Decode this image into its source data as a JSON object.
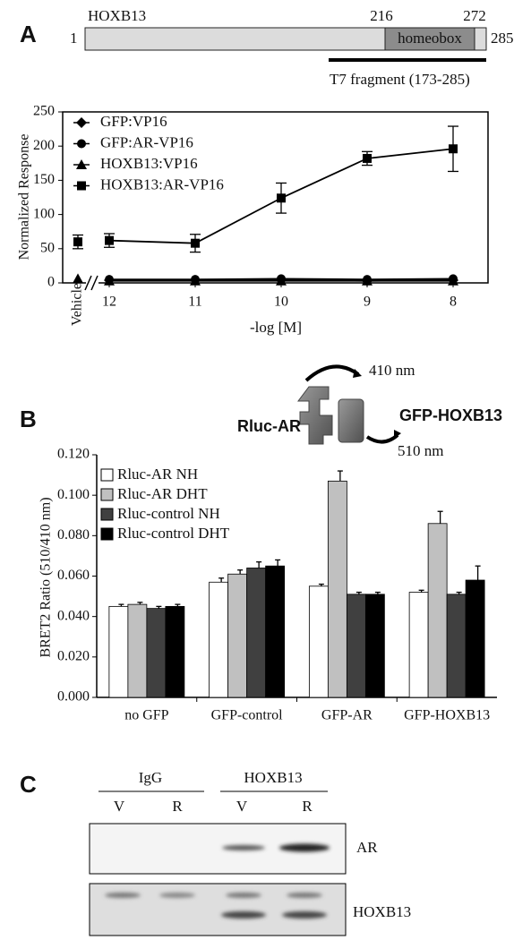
{
  "panels": {
    "a": "A",
    "b": "B",
    "c": "C"
  },
  "protein_map": {
    "name": "HOXB13",
    "start": "1",
    "end": "285",
    "domain_start": "216",
    "domain_end": "272",
    "domain": "homeobox",
    "fragment": "T7 fragment (173-285)"
  },
  "chart_data": [
    {
      "type": "line",
      "ylabel": "Normalized Response",
      "xlabel": "-log [M]",
      "categories": [
        "Vehicle",
        "12",
        "11",
        "10",
        "9",
        "8"
      ],
      "ylim": [
        0,
        250
      ],
      "yticks": [
        0,
        50,
        100,
        150,
        200,
        250
      ],
      "legend": "upper left",
      "series": [
        {
          "name": "GFP:VP16",
          "color": "#000000",
          "marker": "diamond",
          "values": [
            null,
            4,
            4,
            4,
            3,
            4
          ]
        },
        {
          "name": "GFP:AR-VP16",
          "color": "#000000",
          "marker": "circle",
          "values": [
            null,
            5,
            5,
            6,
            5,
            6
          ]
        },
        {
          "name": "HOXB13:VP16",
          "color": "#000000",
          "marker": "triangle",
          "values": [
            6,
            3,
            3,
            3,
            3,
            3
          ]
        },
        {
          "name": "HOXB13:AR-VP16",
          "color": "#000000",
          "marker": "square",
          "values": [
            60,
            62,
            58,
            124,
            182,
            196
          ],
          "errors": [
            10,
            10,
            13,
            22,
            10,
            33
          ]
        }
      ]
    },
    {
      "type": "bar",
      "ylabel": "BRET2 Ratio (510/410 nm)",
      "categories": [
        "no GFP",
        "GFP-control",
        "GFP-AR",
        "GFP-HOXB13"
      ],
      "ylim": [
        0,
        0.12
      ],
      "yticks": [
        {
          "value": 0,
          "label": "0.000"
        },
        {
          "value": 0.02,
          "label": "0.020"
        },
        {
          "value": 0.04,
          "label": "0.040"
        },
        {
          "value": 0.06,
          "label": "0.060"
        },
        {
          "value": 0.08,
          "label": "0.080"
        },
        {
          "value": 0.1,
          "label": "0.100"
        },
        {
          "value": 0.12,
          "label": "0.120"
        }
      ],
      "legend": "upper left",
      "series": [
        {
          "name": "Rluc-AR NH",
          "color": "#ffffff",
          "values": [
            0.045,
            0.057,
            0.055,
            0.052
          ],
          "errors": [
            0.001,
            0.002,
            0.001,
            0.001
          ]
        },
        {
          "name": "Rluc-AR DHT",
          "color": "#c0c0c0",
          "values": [
            0.046,
            0.061,
            0.107,
            0.086
          ],
          "errors": [
            0.001,
            0.002,
            0.005,
            0.006
          ]
        },
        {
          "name": "Rluc-control NH",
          "color": "#404040",
          "values": [
            0.044,
            0.064,
            0.051,
            0.051
          ],
          "errors": [
            0.001,
            0.003,
            0.001,
            0.001
          ]
        },
        {
          "name": "Rluc-control DHT",
          "color": "#000000",
          "values": [
            0.045,
            0.065,
            0.051,
            0.058
          ],
          "errors": [
            0.001,
            0.003,
            0.001,
            0.007
          ]
        }
      ]
    }
  ],
  "bret_diagram": {
    "donor": "Rluc-AR",
    "acceptor": "GFP-HOXB13",
    "emission_donor": "410 nm",
    "emission_acceptor": "510 nm"
  },
  "blot": {
    "groups": [
      "IgG",
      "HOXB13"
    ],
    "lanes": [
      "V",
      "R",
      "V",
      "R"
    ],
    "rows": [
      "AR",
      "HOXB13"
    ]
  }
}
